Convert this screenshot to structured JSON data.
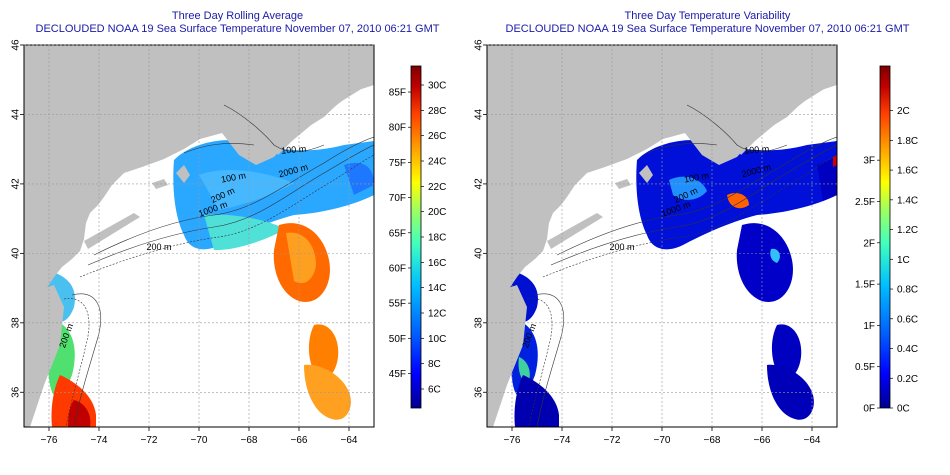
{
  "panels": [
    {
      "title": "Three Day Rolling Average",
      "subtitle": "DECLOUDED NOAA 19 Sea Surface Temperature November 07, 2010 06:21 GMT",
      "colorbar": {
        "celsius_labels": [
          "30C",
          "28C",
          "26C",
          "24C",
          "22C",
          "20C",
          "18C",
          "16C",
          "14C",
          "12C",
          "10C",
          "8C",
          "6C"
        ],
        "fahrenheit_labels": [
          "85F",
          "80F",
          "75F",
          "70F",
          "65F",
          "60F",
          "55F",
          "50F",
          "45F"
        ],
        "colors": [
          "#00008f",
          "#0000ff",
          "#0060ff",
          "#00bfff",
          "#40ffbf",
          "#9fff60",
          "#ffff00",
          "#ff9f00",
          "#ff4000",
          "#c00000",
          "#800000"
        ]
      }
    },
    {
      "title": "Three Day Temperature Variability",
      "subtitle": "DECLOUDED NOAA 19 Sea Surface Temperature November 07, 2010 06:21 GMT",
      "colorbar": {
        "celsius_labels": [
          "2C",
          "1.8C",
          "1.6C",
          "1.4C",
          "1.2C",
          "1C",
          "0.8C",
          "0.6C",
          "0.4C",
          "0.2C",
          "0C"
        ],
        "fahrenheit_labels": [
          "3F",
          "2.5F",
          "2F",
          "1.5F",
          "1F",
          "0.5F",
          "0F"
        ],
        "colors": [
          "#00008f",
          "#0000ff",
          "#0060ff",
          "#00bfff",
          "#40ffbf",
          "#9fff60",
          "#ffff00",
          "#ff9f00",
          "#ff4000",
          "#c00000",
          "#800000"
        ]
      }
    }
  ],
  "map": {
    "lon_ticks": [
      "-76",
      "-74",
      "-72",
      "-70",
      "-68",
      "-66",
      "-64"
    ],
    "lat_ticks": [
      "46",
      "44",
      "42",
      "40",
      "38",
      "36"
    ],
    "lon_range": [
      -77,
      -63
    ],
    "lat_range": [
      35,
      46
    ],
    "contour_labels": [
      "200 m",
      "1000 m",
      "2000 m",
      "100 m",
      "100 m",
      "200 m",
      "200 m"
    ],
    "land_color": "#c0c0c0",
    "ocean_nodata_color": "#ffffff"
  }
}
